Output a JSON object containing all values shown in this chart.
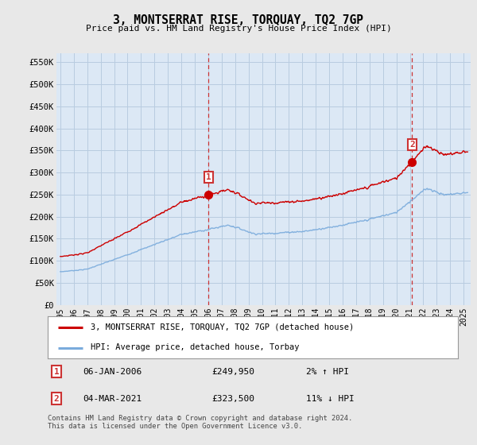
{
  "title": "3, MONTSERRAT RISE, TORQUAY, TQ2 7GP",
  "subtitle": "Price paid vs. HM Land Registry's House Price Index (HPI)",
  "ylabel_ticks": [
    "£0",
    "£50K",
    "£100K",
    "£150K",
    "£200K",
    "£250K",
    "£300K",
    "£350K",
    "£400K",
    "£450K",
    "£500K",
    "£550K"
  ],
  "ytick_values": [
    0,
    50000,
    100000,
    150000,
    200000,
    250000,
    300000,
    350000,
    400000,
    450000,
    500000,
    550000
  ],
  "ylim": [
    0,
    570000
  ],
  "xlim_start": 1994.7,
  "xlim_end": 2025.5,
  "background_color": "#e8e8e8",
  "plot_background_color": "#dce8f5",
  "grid_color": "#b8cce0",
  "hpi_line_color": "#7aabdc",
  "price_line_color": "#cc0000",
  "marker1_x": 2006.03,
  "marker1_y": 249950,
  "marker2_x": 2021.17,
  "marker2_y": 323500,
  "vline_color": "#cc3333",
  "legend_line1": "3, MONTSERRAT RISE, TORQUAY, TQ2 7GP (detached house)",
  "legend_line2": "HPI: Average price, detached house, Torbay",
  "table_rows": [
    {
      "num": "1",
      "date": "06-JAN-2006",
      "price": "£249,950",
      "change": "2% ↑ HPI"
    },
    {
      "num": "2",
      "date": "04-MAR-2021",
      "price": "£323,500",
      "change": "11% ↓ HPI"
    }
  ],
  "footer": "Contains HM Land Registry data © Crown copyright and database right 2024.\nThis data is licensed under the Open Government Licence v3.0.",
  "xtick_years": [
    1995,
    1996,
    1997,
    1998,
    1999,
    2000,
    2001,
    2002,
    2003,
    2004,
    2005,
    2006,
    2007,
    2008,
    2009,
    2010,
    2011,
    2012,
    2013,
    2014,
    2015,
    2016,
    2017,
    2018,
    2019,
    2020,
    2021,
    2022,
    2023,
    2024,
    2025
  ]
}
